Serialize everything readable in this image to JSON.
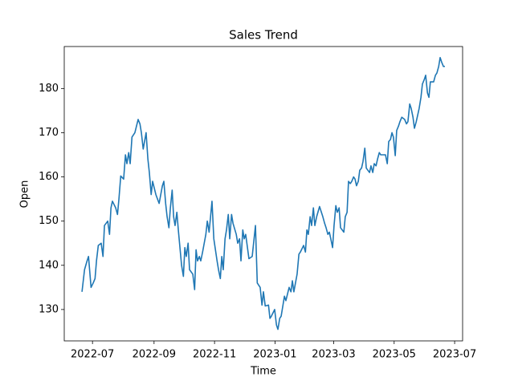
{
  "chart_data": {
    "type": "line",
    "title": "Sales Trend",
    "x_label": "Time",
    "y_label": "Open",
    "color": "#1f77b4",
    "x": [
      2022.467,
      2022.474,
      2022.481,
      2022.485,
      2022.492,
      2022.498,
      2022.503,
      2022.507,
      2022.512,
      2022.52,
      2022.525,
      2022.529,
      2022.538,
      2022.543,
      2022.547,
      2022.551,
      2022.56,
      2022.565,
      2022.569,
      2022.574,
      2022.582,
      2022.587,
      2022.591,
      2022.596,
      2022.6,
      2022.605,
      2022.613,
      2022.622,
      2022.627,
      2022.631,
      2022.636,
      2022.644,
      2022.649,
      2022.653,
      2022.658,
      2022.662,
      2022.671,
      2022.68,
      2022.689,
      2022.693,
      2022.698,
      2022.702,
      2022.707,
      2022.711,
      2022.716,
      2022.72,
      2022.724,
      2022.729,
      2022.733,
      2022.742,
      2022.747,
      2022.751,
      2022.755,
      2022.76,
      2022.764,
      2022.773,
      2022.778,
      2022.782,
      2022.786,
      2022.791,
      2022.795,
      2022.8,
      2022.809,
      2022.813,
      2022.818,
      2022.822,
      2022.826,
      2022.831,
      2022.84,
      2022.844,
      2022.849,
      2022.853,
      2022.857,
      2022.862,
      2022.866,
      2022.871,
      2022.875,
      2022.88,
      2022.884,
      2022.893,
      2022.897,
      2022.902,
      2022.906,
      2022.911,
      2022.915,
      2022.919,
      2022.928,
      2022.937,
      2022.946,
      2022.951,
      2022.959,
      2022.964,
      2022.968,
      2022.973,
      2022.982,
      2022.986,
      2022.99,
      2022.999,
      2023.004,
      2023.008,
      2023.013,
      2023.017,
      2023.026,
      2023.03,
      2023.039,
      2023.044,
      2023.048,
      2023.052,
      2023.061,
      2023.066,
      2023.07,
      2023.079,
      2023.084,
      2023.088,
      2023.092,
      2023.097,
      2023.101,
      2023.106,
      2023.11,
      2023.115,
      2023.123,
      2023.132,
      2023.137,
      2023.141,
      2023.146,
      2023.15,
      2023.154,
      2023.159,
      2023.163,
      2023.168,
      2023.172,
      2023.177,
      2023.181,
      2023.19,
      2023.194,
      2023.199,
      2023.203,
      2023.208,
      2023.212,
      2023.217,
      2023.221,
      2023.225,
      2023.23,
      2023.234,
      2023.239,
      2023.243,
      2023.248,
      2023.252,
      2023.261,
      2023.265,
      2023.27,
      2023.274,
      2023.279,
      2023.283,
      2023.288,
      2023.292,
      2023.296,
      2023.305,
      2023.31,
      2023.314,
      2023.319,
      2023.323,
      2023.327,
      2023.332,
      2023.336,
      2023.341,
      2023.345,
      2023.35,
      2023.358,
      2023.363,
      2023.367,
      2023.372,
      2023.376,
      2023.381,
      2023.385,
      2023.39,
      2023.394,
      2023.398,
      2023.403,
      2023.407,
      2023.412,
      2023.416,
      2023.421,
      2023.425,
      2023.429,
      2023.438,
      2023.443,
      2023.447,
      2023.452,
      2023.456,
      2023.46,
      2023.465,
      2023.469
    ],
    "values": [
      134,
      139,
      141,
      142,
      135,
      136,
      137,
      141,
      144.5,
      145,
      142,
      149,
      150,
      147,
      153,
      154.5,
      153,
      151.5,
      155,
      160.2,
      159.5,
      165,
      163,
      165.5,
      163,
      169,
      170,
      173,
      172,
      170,
      166.3,
      170,
      164,
      161,
      156,
      159,
      156,
      154,
      158,
      159,
      154,
      151,
      148.5,
      153,
      157,
      151,
      149,
      152,
      148,
      140,
      137.5,
      144,
      142,
      145,
      139,
      138,
      134.5,
      143.5,
      141,
      142,
      141,
      143,
      147,
      150,
      147.5,
      151,
      154.5,
      146,
      141,
      139,
      137,
      142,
      139,
      146,
      148,
      151.5,
      146,
      151.5,
      149.5,
      147,
      145,
      146,
      141,
      148,
      146,
      147,
      141.5,
      142,
      149,
      136,
      135,
      131,
      134,
      130.8,
      131,
      128,
      128.5,
      130,
      126.5,
      125.5,
      128,
      128.5,
      133,
      132,
      135,
      134,
      136.5,
      134,
      138,
      142.5,
      143,
      144.5,
      143,
      148,
      147,
      151,
      149,
      153,
      149,
      151,
      153.3,
      151,
      149.5,
      148.5,
      147,
      147.5,
      146,
      144,
      149,
      153.5,
      152,
      153,
      148.5,
      147.5,
      151,
      152,
      159,
      158.5,
      159,
      160,
      159.5,
      158,
      159,
      161.5,
      162,
      163.5,
      166.5,
      162,
      161,
      162.5,
      161,
      163,
      162.5,
      164,
      165.5,
      165,
      165,
      165,
      163,
      168,
      168.5,
      170,
      169,
      164.8,
      170.5,
      171.5,
      172.5,
      173.5,
      173,
      172,
      172.5,
      176.5,
      175.5,
      173.5,
      171,
      172.5,
      174,
      175.5,
      178,
      181,
      182,
      183,
      179,
      178,
      181.5,
      181.5,
      183,
      183.5,
      185,
      187,
      186,
      185,
      185
    ],
    "xlim": [
      2022.418,
      2023.518
    ],
    "xticks": [
      {
        "value": 2022.496,
        "label": "2022-07"
      },
      {
        "value": 2022.666,
        "label": "2022-09"
      },
      {
        "value": 2022.833,
        "label": "2022-11"
      },
      {
        "value": 2023.0,
        "label": "2023-01"
      },
      {
        "value": 2023.162,
        "label": "2023-03"
      },
      {
        "value": 2023.329,
        "label": "2023-05"
      },
      {
        "value": 2023.496,
        "label": "2023-07"
      }
    ],
    "ylim": [
      122.9,
      189.5
    ],
    "yticks": [
      130,
      140,
      150,
      160,
      170,
      180
    ],
    "grid": false
  }
}
